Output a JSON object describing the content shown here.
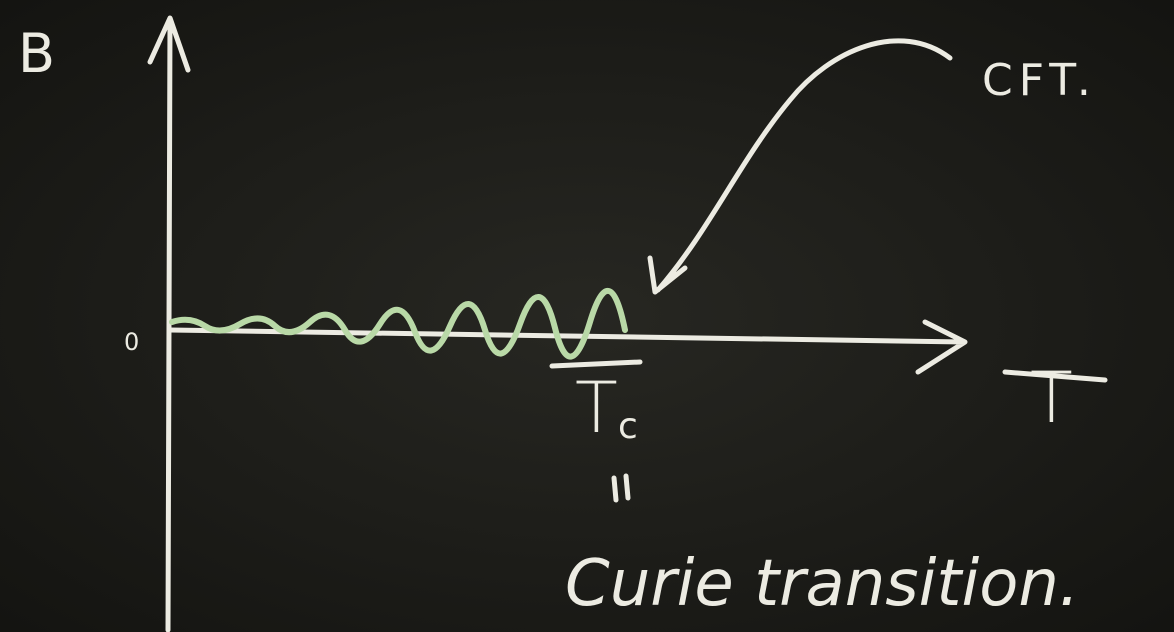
{
  "axes": {
    "y_label": "B",
    "origin": "0",
    "x_label": "T"
  },
  "annotations": {
    "cft": "CFT.",
    "critical_temp": {
      "symbol": "T",
      "subscript": "c"
    },
    "caption": "Curie transition."
  }
}
